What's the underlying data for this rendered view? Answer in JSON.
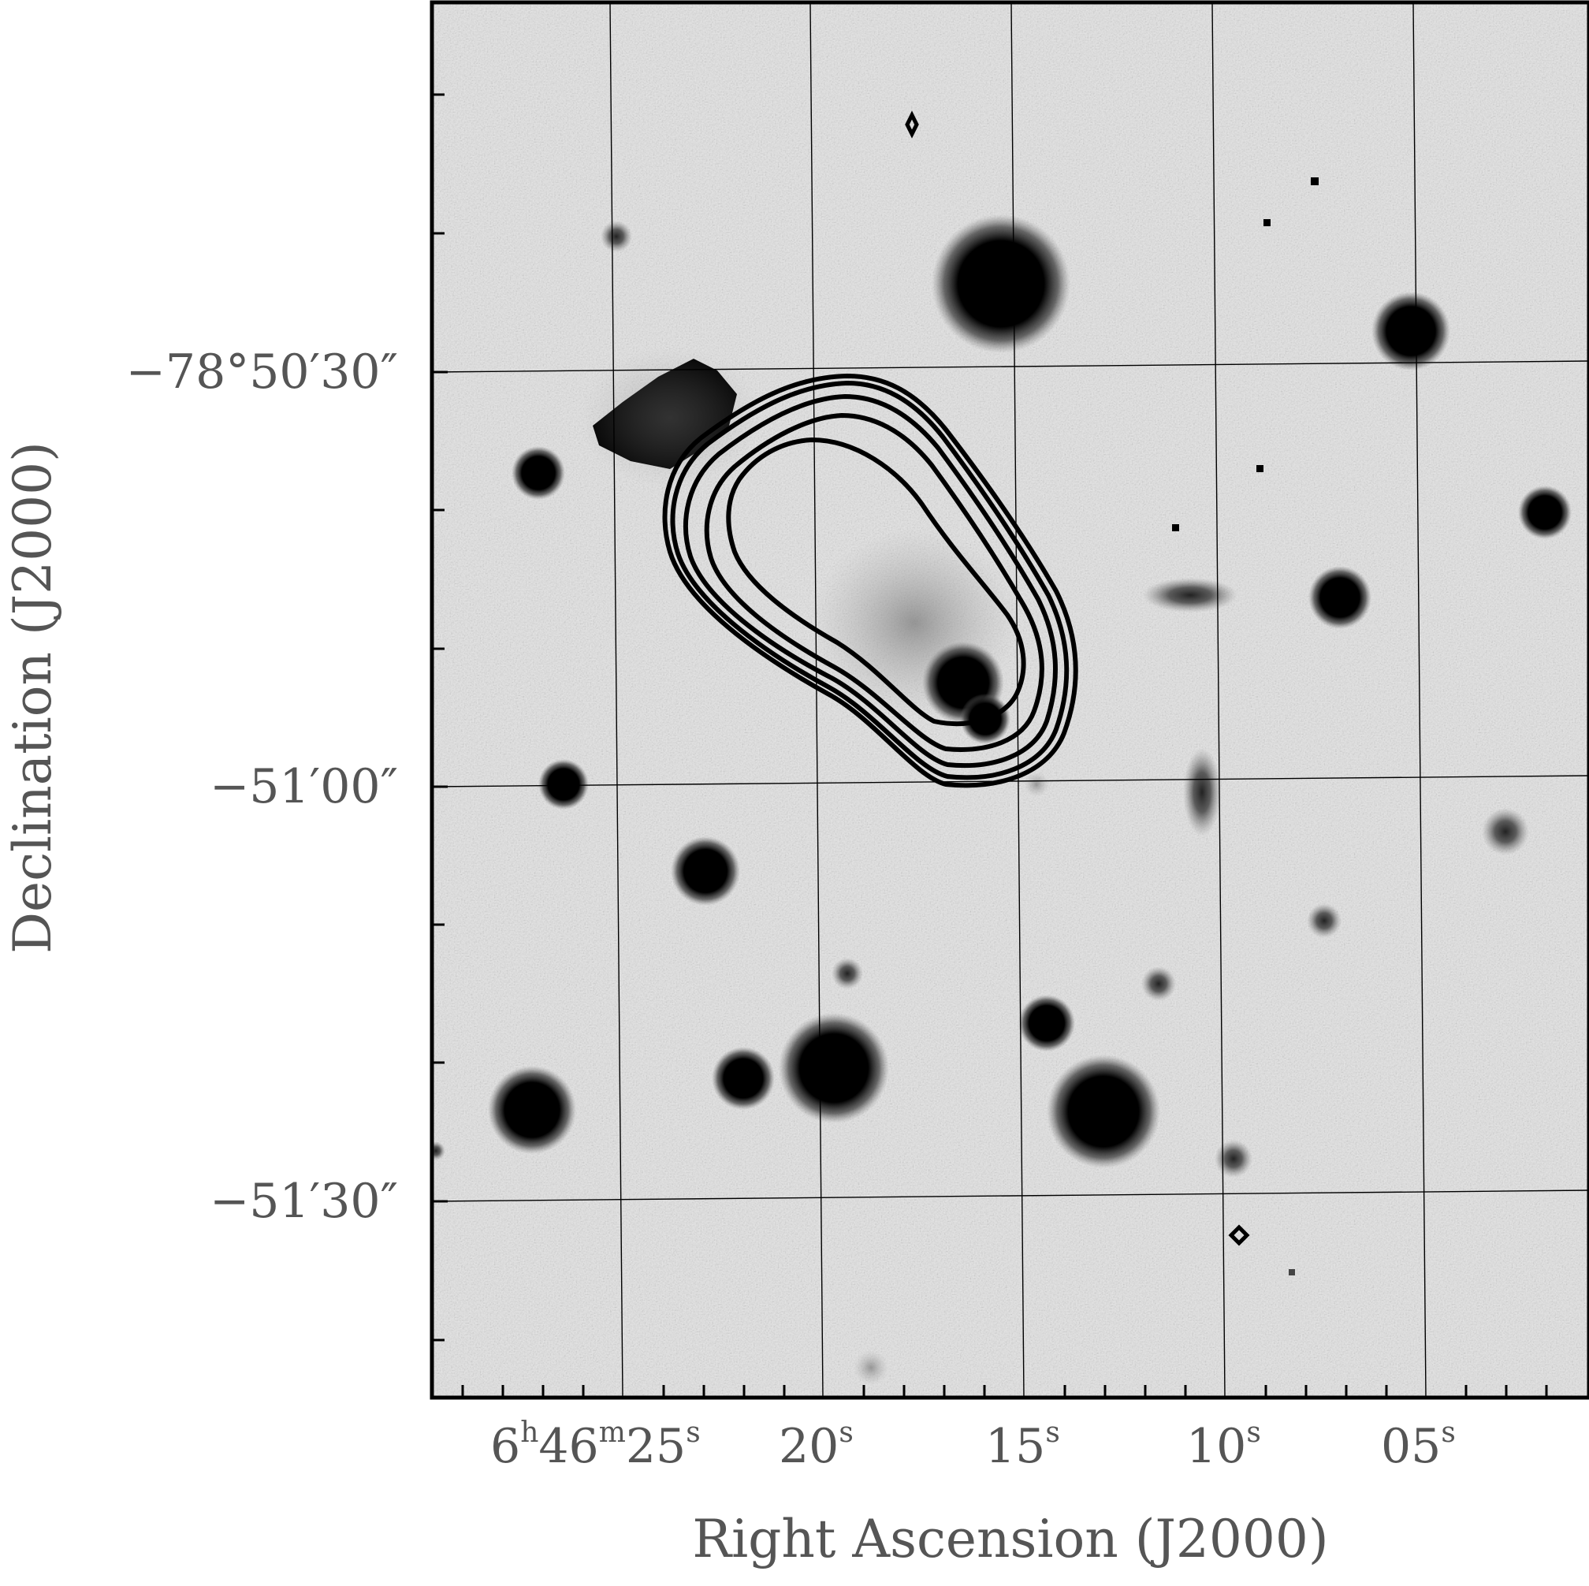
{
  "figure": {
    "xlabel": "Right Ascension (J2000)",
    "ylabel": "Declination (J2000)",
    "ra_ticks": [
      {
        "h": "6",
        "m": "46",
        "s": "25"
      },
      {
        "s": "20"
      },
      {
        "s": "15"
      },
      {
        "s": "10"
      },
      {
        "s": "05"
      }
    ],
    "dec_ticks": [
      "−78°50′30″",
      "−51′00″",
      "−51′30″"
    ],
    "units": {
      "h": "h",
      "m": "m",
      "s": "s"
    }
  },
  "colors": {
    "background_image": "#e6e6e6",
    "contours": "#000000",
    "axis_text": "#555555"
  }
}
